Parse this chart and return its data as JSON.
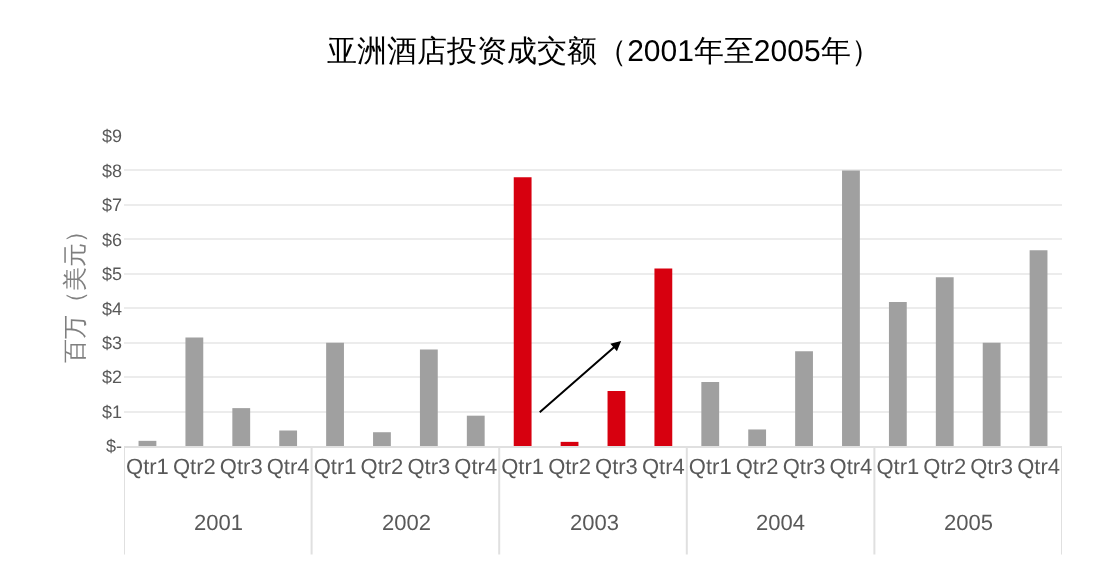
{
  "chart_data": {
    "type": "bar",
    "title": "亚洲酒店投资成交额（2001年至2005年）",
    "ylabel": "百万（美元）",
    "categories": [
      "Qtr1",
      "Qtr2",
      "Qtr3",
      "Qtr4",
      "Qtr1",
      "Qtr2",
      "Qtr3",
      "Qtr4",
      "Qtr1",
      "Qtr2",
      "Qtr3",
      "Qtr4",
      "Qtr1",
      "Qtr2",
      "Qtr3",
      "Qtr4",
      "Qtr1",
      "Qtr2",
      "Qtr3",
      "Qtr4"
    ],
    "values": [
      0.15,
      3.15,
      1.1,
      0.45,
      3.0,
      0.4,
      2.8,
      0.88,
      7.8,
      0.12,
      1.6,
      5.15,
      1.86,
      0.48,
      2.75,
      8.0,
      4.18,
      4.9,
      3.0,
      5.68
    ],
    "colors": [
      "#a0a0a0",
      "#a0a0a0",
      "#a0a0a0",
      "#a0a0a0",
      "#a0a0a0",
      "#a0a0a0",
      "#a0a0a0",
      "#a0a0a0",
      "#d7000f",
      "#d7000f",
      "#d7000f",
      "#d7000f",
      "#a0a0a0",
      "#a0a0a0",
      "#a0a0a0",
      "#a0a0a0",
      "#a0a0a0",
      "#a0a0a0",
      "#a0a0a0",
      "#a0a0a0"
    ],
    "annotations": [
      "2001",
      "2002",
      "2003",
      "2004",
      "2005"
    ],
    "ylim": [
      0,
      9
    ],
    "yticks": [
      {
        "value": 0,
        "label": "$-"
      },
      {
        "value": 1,
        "label": "$1"
      },
      {
        "value": 2,
        "label": "$2"
      },
      {
        "value": 3,
        "label": "$3"
      },
      {
        "value": 4,
        "label": "$4"
      },
      {
        "value": 5,
        "label": "$5"
      },
      {
        "value": 6,
        "label": "$6"
      },
      {
        "value": 7,
        "label": "$7"
      },
      {
        "value": 8,
        "label": "$8"
      },
      {
        "value": 9,
        "label": "$9"
      }
    ],
    "grid": "y",
    "legend": false
  }
}
